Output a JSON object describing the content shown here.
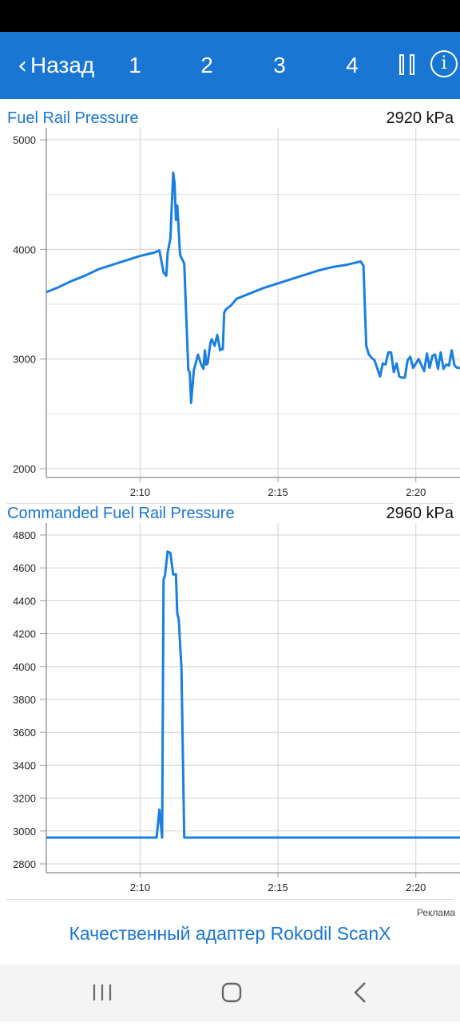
{
  "header": {
    "back_label": "Назад",
    "tabs": [
      "1",
      "2",
      "3",
      "4"
    ],
    "pause_icon": "pause-icon",
    "info_icon": "info-icon",
    "info_glyph": "i",
    "color": "#1976d2"
  },
  "plots": [
    {
      "title": "Fuel Rail Pressure",
      "value": "2920  kPa"
    },
    {
      "title": "Commanded Fuel Rail Pressure",
      "value": "2960  kPa"
    }
  ],
  "chart_data": [
    {
      "type": "line",
      "title": "Fuel Rail Pressure",
      "ylim": [
        2000,
        5000
      ],
      "y_ticks": [
        2000,
        3000,
        4000,
        5000
      ],
      "xlim": [
        "2:06.6",
        "2:21.6"
      ],
      "x_ticks": [
        "2:10",
        "2:15",
        "2:20"
      ],
      "grid": true,
      "line_color": "#1a7fe0",
      "series": [
        {
          "x": [
            "2:06.6",
            "2:07.0",
            "2:07.5",
            "2:08.0",
            "2:08.5",
            "2:09.0",
            "2:09.5",
            "2:10.0",
            "2:10.5",
            "2:10.7",
            "2:10.85",
            "2:10.95",
            "2:11.0",
            "2:11.1",
            "2:11.15",
            "2:11.2",
            "2:11.25",
            "2:11.3",
            "2:11.35",
            "2:11.45",
            "2:11.6",
            "2:11.75",
            "2:11.8",
            "2:11.85",
            "2:11.95",
            "2:12.1",
            "2:12.2",
            "2:12.3",
            "2:12.35",
            "2:12.4",
            "2:12.45",
            "2:12.55",
            "2:12.6",
            "2:12.7",
            "2:12.8",
            "2:12.9",
            "2:12.95",
            "2:13.0",
            "2:13.05",
            "2:13.1",
            "2:13.2",
            "2:13.3",
            "2:13.4",
            "2:13.5",
            "2:14.0",
            "2:14.5",
            "2:15.0",
            "2:15.5",
            "2:16.0",
            "2:16.5",
            "2:17.0",
            "2:17.5",
            "2:18.0",
            "2:18.1",
            "2:18.2",
            "2:18.3",
            "2:18.4",
            "2:18.5",
            "2:18.7",
            "2:18.8",
            "2:18.9",
            "2:19.0",
            "2:19.1",
            "2:19.2",
            "2:19.3",
            "2:19.4",
            "2:19.5",
            "2:19.6",
            "2:19.7",
            "2:19.8",
            "2:19.9",
            "2:20.1",
            "2:20.3",
            "2:20.4",
            "2:20.5",
            "2:20.6",
            "2:20.7",
            "2:20.8",
            "2:20.9",
            "2:21.0",
            "2:21.1",
            "2:21.2",
            "2:21.3",
            "2:21.4",
            "2:21.5",
            "2:21.6"
          ],
          "y": [
            3610,
            3650,
            3710,
            3760,
            3820,
            3860,
            3900,
            3940,
            3970,
            3990,
            3790,
            3760,
            3970,
            4100,
            4400,
            4700,
            4600,
            4270,
            4400,
            3950,
            3870,
            2900,
            2880,
            2600,
            2900,
            3040,
            2960,
            2910,
            3080,
            2950,
            2960,
            3150,
            3180,
            3120,
            3220,
            3080,
            3090,
            3090,
            3420,
            3450,
            3470,
            3490,
            3520,
            3550,
            3600,
            3650,
            3690,
            3730,
            3770,
            3810,
            3840,
            3860,
            3890,
            3850,
            3120,
            3040,
            3010,
            2990,
            2840,
            2960,
            2950,
            3060,
            3060,
            2880,
            2960,
            2840,
            2830,
            2830,
            2990,
            3020,
            2920,
            3000,
            2890,
            3050,
            2920,
            3030,
            3040,
            2910,
            3060,
            2910,
            2950,
            2940,
            3080,
            2940,
            2920,
            2920
          ]
        }
      ]
    },
    {
      "type": "line",
      "title": "Commanded Fuel Rail Pressure",
      "ylim": [
        2800,
        4800
      ],
      "y_ticks": [
        2800,
        3000,
        3200,
        3400,
        3600,
        3800,
        4000,
        4200,
        4400,
        4600,
        4800
      ],
      "xlim": [
        "2:06.6",
        "2:21.6"
      ],
      "x_ticks": [
        "2:10",
        "2:15",
        "2:20"
      ],
      "grid": true,
      "line_color": "#1a7fe0",
      "series": [
        {
          "x": [
            "2:06.6",
            "2:07.0",
            "2:08.0",
            "2:09.0",
            "2:10.0",
            "2:10.6",
            "2:10.7",
            "2:10.8",
            "2:10.85",
            "2:10.9",
            "2:11.0",
            "2:11.1",
            "2:11.2",
            "2:11.3",
            "2:11.35",
            "2:11.4",
            "2:11.5",
            "2:11.6",
            "2:12.0",
            "2:14.0",
            "2:16.0",
            "2:18.0",
            "2:20.0",
            "2:21.6"
          ],
          "y": [
            2960,
            2960,
            2960,
            2960,
            2960,
            2960,
            3130,
            2960,
            4530,
            4550,
            4700,
            4690,
            4560,
            4560,
            4320,
            4290,
            3990,
            2960,
            2960,
            2960,
            2960,
            2960,
            2960,
            2960
          ]
        }
      ]
    }
  ],
  "ad": {
    "label": "Реклама",
    "text": "Качественный адаптер Rokodil ScanX"
  },
  "nav": {
    "buttons": [
      "recent-apps-icon",
      "home-icon",
      "back-icon"
    ]
  }
}
